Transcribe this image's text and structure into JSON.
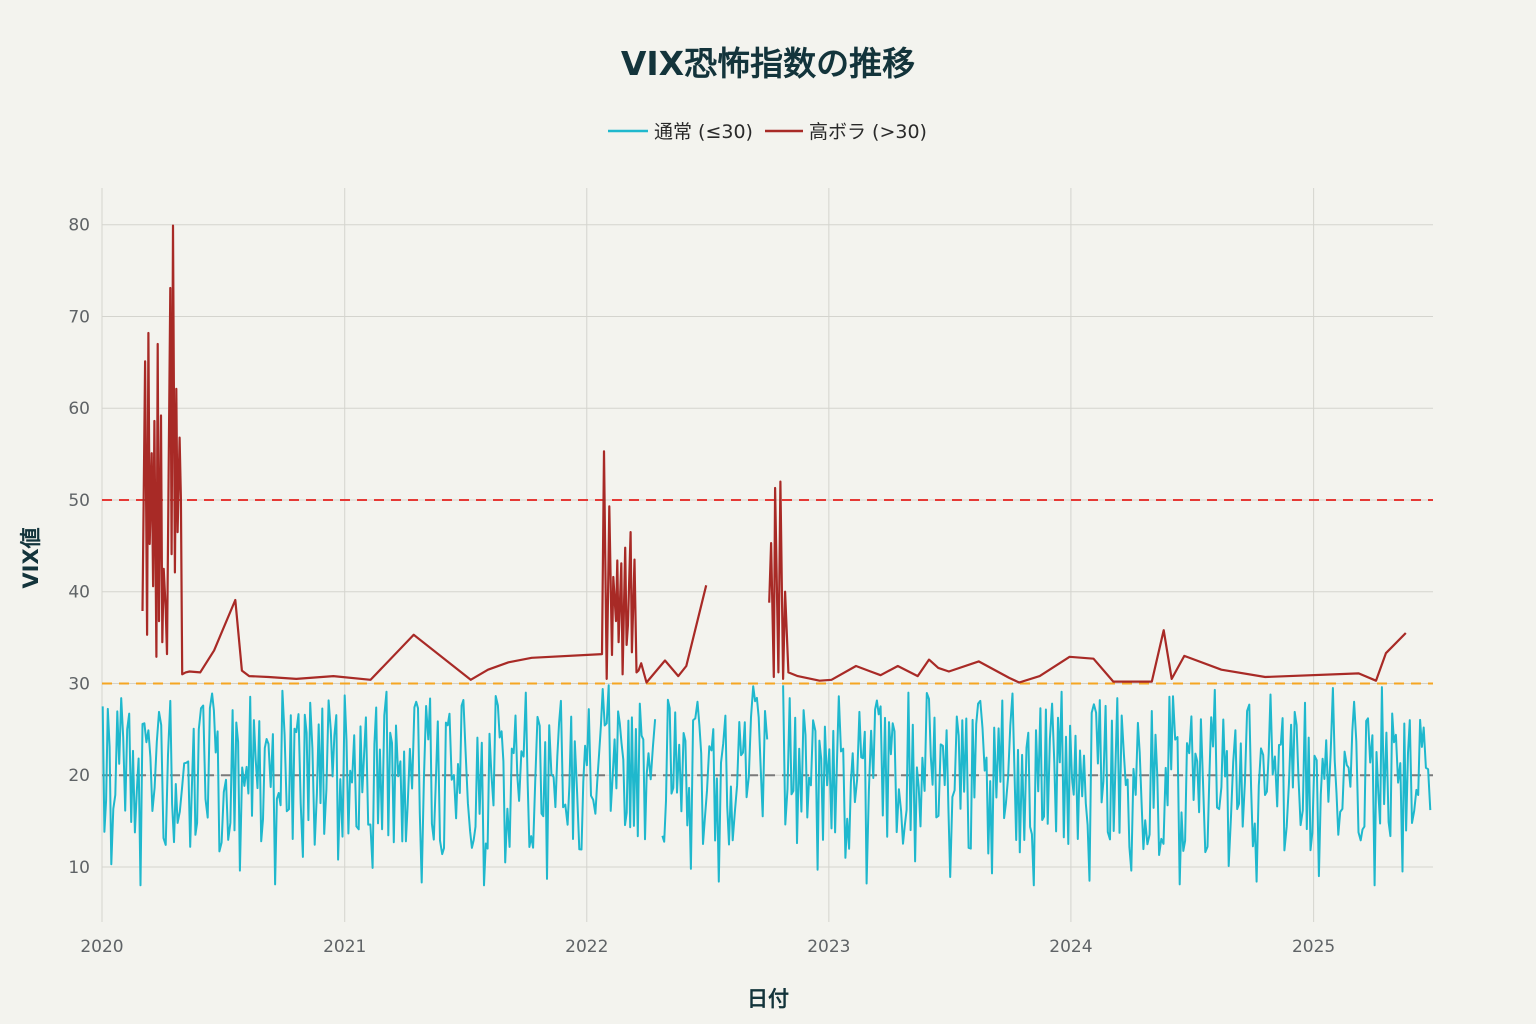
{
  "chart_data": {
    "type": "line",
    "title": "VIX恐怖指数の推移",
    "xlabel": "日付",
    "ylabel": "VIX値",
    "xlim": [
      "2020-01-01",
      "2025-06-30"
    ],
    "ylim": [
      4,
      84
    ],
    "x_ticks": [
      "2020",
      "2021",
      "2022",
      "2023",
      "2024",
      "2025"
    ],
    "y_ticks": [
      10,
      20,
      30,
      40,
      50,
      60,
      70,
      80
    ],
    "grid": true,
    "legend_position": "top-center",
    "series": [
      {
        "name": "通常 (≤30)",
        "color": "#1fb8cd",
        "segments": [
          {
            "x": [
              "2020-01-02",
              "2020-01-15",
              "2020-01-30",
              "2020-02-14",
              "2020-02-28",
              "2020-03-08",
              "2020-03-17",
              "2020-03-27",
              "2020-04-06",
              "2020-04-13",
              "2020-04-24",
              "2020-05-04",
              "2020-05-13",
              "2020-05-26",
              "2020-06-05",
              "2020-06-15",
              "2020-06-26",
              "2020-07-06",
              "2020-07-16",
              "2020-07-27",
              "2020-08-06",
              "2020-08-17",
              "2020-08-28",
              "2020-09-08",
              "2020-09-18",
              "2020-09-29",
              "2020-10-09",
              "2020-10-20",
              "2020-10-30",
              "2020-11-10",
              "2020-11-20",
              "2020-12-01",
              "2020-12-11",
              "2020-12-22",
              "2021-01-01",
              "2021-01-12",
              "2021-01-22",
              "2021-02-02",
              "2021-02-12",
              "2021-02-23",
              "2021-03-05",
              "2021-03-16",
              "2021-03-26",
              "2021-04-06",
              "2021-04-16",
              "2021-04-27",
              "2021-05-07",
              "2021-05-18",
              "2021-05-28",
              "2021-06-08",
              "2021-06-18",
              "2021-06-29",
              "2021-07-09",
              "2021-07-20",
              "2021-07-30",
              "2021-08-10",
              "2021-08-20",
              "2021-08-31",
              "2021-09-10",
              "2021-09-21",
              "2021-10-01",
              "2021-10-12",
              "2021-10-22",
              "2021-11-02",
              "2021-11-12",
              "2021-11-23",
              "2021-12-03",
              "2021-12-14",
              "2021-12-24",
              "2022-01-04",
              "2022-01-14",
              "2022-01-25",
              "2022-02-03",
              "2022-02-12",
              "2022-02-25",
              "2022-03-10",
              "2022-03-22",
              "2022-04-04",
              "2022-04-14"
            ],
            "y": [
              27.5,
              10.3,
              28.4,
              14.9,
              8.0,
              23.6,
              16.1,
              26.9,
              12.4,
              28.1,
              14.8,
              21.3,
              12.2,
              25.0,
              17.4,
              28.9,
              11.7,
              19.5,
              27.1,
              9.6,
              20.9,
              26.0,
              12.8,
              23.4,
              8.1,
              29.2,
              16.3,
              24.7,
              11.1,
              27.9,
              18.0,
              13.6,
              24.9,
              10.8,
              28.7,
              19.2,
              14.1,
              26.3,
              9.9,
              22.8,
              29.1,
              12.7,
              21.5,
              16.8,
              27.4,
              8.3,
              23.9,
              18.6,
              11.4,
              26.7,
              15.3,
              28.2,
              13.9,
              24.1,
              8.0,
              20.3,
              27.6,
              10.5,
              22.9,
              17.2,
              29.0,
              12.1,
              25.4,
              8.7,
              19.8,
              28.1,
              14.6,
              23.7,
              11.9,
              27.2,
              15.8,
              29.4,
              29.8,
              23.9,
              21.7,
              26.3,
              27.8,
              22.4,
              26.1
            ]
          },
          {
            "x": [
              "2022-04-25",
              "2022-05-06",
              "2022-05-17",
              "2022-05-27",
              "2022-06-07",
              "2022-06-17",
              "2022-06-28",
              "2022-07-08",
              "2022-07-19",
              "2022-07-29",
              "2022-08-09",
              "2022-08-19",
              "2022-08-30",
              "2022-09-09",
              "2022-09-20",
              "2022-09-30"
            ],
            "y": [
              13.4,
              27.3,
              18.1,
              24.6,
              9.8,
              28.0,
              15.2,
              22.7,
              8.4,
              26.5,
              12.9,
              25.8,
              17.6,
              29.7,
              21.3,
              23.9
            ]
          },
          {
            "x": [
              "2022-10-24",
              "2022-11-03",
              "2022-11-14",
              "2022-11-24",
              "2022-12-05",
              "2022-12-15",
              "2022-12-26",
              "2023-01-05",
              "2023-01-16",
              "2023-01-26",
              "2023-02-06",
              "2023-02-16",
              "2023-02-27",
              "2023-03-09",
              "2023-03-20",
              "2023-03-30",
              "2023-04-10",
              "2023-04-20",
              "2023-05-01",
              "2023-05-11",
              "2023-05-22",
              "2023-06-01",
              "2023-06-12",
              "2023-06-22",
              "2023-07-03",
              "2023-07-13",
              "2023-07-24",
              "2023-08-03",
              "2023-08-14",
              "2023-08-24",
              "2023-09-04",
              "2023-09-14",
              "2023-09-25",
              "2023-10-05",
              "2023-10-16",
              "2023-10-26",
              "2023-11-06",
              "2023-11-16",
              "2023-11-27",
              "2023-12-07",
              "2023-12-18",
              "2023-12-28",
              "2024-01-08",
              "2024-01-18",
              "2024-01-29",
              "2024-02-08",
              "2024-02-19",
              "2024-02-29",
              "2024-03-11",
              "2024-03-21",
              "2024-04-01",
              "2024-04-11",
              "2024-04-22",
              "2024-05-02",
              "2024-05-13",
              "2024-05-23",
              "2024-06-03",
              "2024-06-13",
              "2024-06-24",
              "2024-07-04",
              "2024-07-15",
              "2024-07-25",
              "2024-08-05",
              "2024-08-15",
              "2024-08-26",
              "2024-09-05",
              "2024-09-16",
              "2024-09-26",
              "2024-10-07",
              "2024-10-17",
              "2024-10-28",
              "2024-11-07",
              "2024-11-18",
              "2024-11-28",
              "2024-12-09",
              "2024-12-19",
              "2024-12-30",
              "2025-01-09",
              "2025-01-20",
              "2025-01-30",
              "2025-02-10",
              "2025-02-20",
              "2025-03-03",
              "2025-03-13",
              "2025-03-24",
              "2025-04-03",
              "2025-04-14",
              "2025-04-24",
              "2025-05-05",
              "2025-05-15",
              "2025-05-26",
              "2025-06-05",
              "2025-06-16",
              "2025-06-26"
            ],
            "y": [
              29.8,
              28.4,
              12.6,
              27.1,
              18.9,
              9.7,
              25.3,
              14.2,
              28.6,
              11.0,
              22.4,
              26.9,
              8.2,
              19.7,
              27.5,
              13.3,
              24.8,
              16.1,
              29.0,
              10.6,
              21.9,
              28.3,
              15.4,
              23.2,
              8.9,
              26.4,
              18.2,
              12.0,
              27.8,
              20.5,
              9.3,
              25.1,
              16.9,
              28.9,
              11.6,
              23.0,
              8.0,
              27.3,
              14.7,
              21.4,
              29.1,
              12.5,
              24.3,
              17.7,
              8.5,
              26.8,
              19.3,
              13.0,
              28.4,
              22.1,
              9.6,
              25.7,
              15.1,
              27.0,
              11.3,
              20.8,
              28.6,
              8.1,
              23.5,
              17.3,
              26.1,
              12.2,
              29.3,
              18.7,
              10.1,
              24.9,
              14.4,
              27.7,
              8.4,
              22.2,
              28.8,
              16.6,
              11.8,
              25.5,
              19.9,
              27.9,
              13.7,
              9.0,
              23.8,
              29.5,
              16.0,
              21.1,
              28.0,
              12.9,
              26.2,
              8.0,
              29.6,
              14.9,
              24.4,
              9.5,
              26.0,
              18.4,
              25.2,
              16.2
            ]
          }
        ]
      },
      {
        "name": "高ボラ (>30)",
        "color": "#a82a26",
        "segments": [
          {
            "x": [
              "2020-03-02",
              "2020-03-06",
              "2020-03-09",
              "2020-03-11",
              "2020-03-13",
              "2020-03-16",
              "2020-03-18",
              "2020-03-20",
              "2020-03-23",
              "2020-03-25",
              "2020-03-27",
              "2020-03-30",
              "2020-04-01",
              "2020-04-03",
              "2020-04-06",
              "2020-04-08",
              "2020-04-13",
              "2020-04-15",
              "2020-04-17",
              "2020-04-20",
              "2020-04-22",
              "2020-04-24",
              "2020-04-27",
              "2020-04-29",
              "2020-05-01",
              "2020-05-06",
              "2020-05-12",
              "2020-05-28",
              "2020-06-18",
              "2020-07-20",
              "2020-07-30",
              "2020-08-10",
              "2020-09-08",
              "2020-10-20",
              "2020-12-15",
              "2021-02-09",
              "2021-04-15",
              "2021-07-10",
              "2021-08-05",
              "2021-09-05",
              "2021-10-10",
              "2022-01-24",
              "2022-01-27",
              "2022-01-31",
              "2022-02-02",
              "2022-02-04",
              "2022-02-08",
              "2022-02-10",
              "2022-02-14",
              "2022-02-16",
              "2022-02-18",
              "2022-02-22",
              "2022-02-24",
              "2022-02-28",
              "2022-03-02",
              "2022-03-04",
              "2022-03-08",
              "2022-03-10",
              "2022-03-14",
              "2022-03-17",
              "2022-03-20",
              "2022-03-24",
              "2022-04-01",
              "2022-04-29",
              "2022-05-19",
              "2022-05-31",
              "2022-06-30"
            ],
            "y": [
              37.9,
              65.1,
              35.3,
              68.2,
              45.2,
              55.1,
              40.6,
              58.6,
              32.9,
              67.0,
              36.8,
              59.2,
              34.5,
              42.5,
              38.1,
              33.2,
              73.1,
              44.1,
              79.9,
              42.1,
              62.1,
              46.5,
              56.8,
              50.2,
              31.0,
              31.2,
              31.3,
              31.2,
              33.6,
              39.1,
              31.4,
              30.8,
              30.7,
              30.5,
              30.8,
              30.4,
              35.3,
              30.4,
              31.5,
              32.3,
              32.8,
              33.2,
              55.3,
              30.5,
              39.4,
              49.3,
              33.1,
              41.6,
              36.8,
              43.4,
              34.5,
              43.1,
              31.0,
              44.8,
              34.2,
              36.3,
              46.5,
              33.4,
              43.5,
              31.2,
              31.4,
              32.2,
              30.1,
              32.5,
              30.8,
              31.9,
              40.7
            ]
          },
          {
            "x": [
              "2022-10-03",
              "2022-10-06",
              "2022-10-10",
              "2022-10-12",
              "2022-10-17",
              "2022-10-20",
              "2022-10-24",
              "2022-10-27",
              "2022-11-01",
              "2022-11-15",
              "2022-12-18",
              "2023-01-05",
              "2023-02-11",
              "2023-03-05",
              "2023-03-20",
              "2023-04-15",
              "2023-05-15",
              "2023-06-01",
              "2023-06-15",
              "2023-07-01",
              "2023-08-15",
              "2023-09-30",
              "2023-10-15",
              "2023-11-15",
              "2023-12-30",
              "2024-02-04",
              "2024-03-05",
              "2024-04-10",
              "2024-05-02",
              "2024-05-20",
              "2024-06-01",
              "2024-06-20",
              "2024-08-15",
              "2024-10-20",
              "2025-03-10",
              "2025-04-05",
              "2025-04-20",
              "2025-05-20"
            ],
            "y": [
              38.8,
              45.3,
              30.7,
              51.3,
              31.2,
              52.0,
              30.5,
              40.0,
              31.2,
              30.8,
              30.3,
              30.4,
              31.9,
              31.3,
              30.9,
              31.9,
              30.8,
              32.6,
              31.7,
              31.3,
              32.4,
              30.6,
              30.1,
              30.8,
              32.9,
              32.7,
              30.2,
              30.2,
              30.2,
              35.8,
              30.5,
              33.0,
              31.5,
              30.7,
              31.1,
              30.3,
              33.3,
              35.5
            ]
          }
        ]
      }
    ],
    "reference_lines": [
      {
        "y": 50,
        "color": "#e53935",
        "style": "dashed"
      },
      {
        "y": 30,
        "color": "#f5a623",
        "style": "dashed"
      },
      {
        "y": 20,
        "color": "#7a7a7a",
        "style": "dashed"
      }
    ]
  }
}
